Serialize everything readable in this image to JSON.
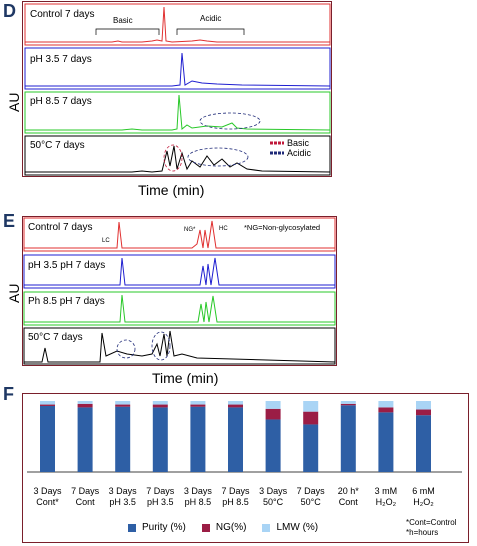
{
  "panels": {
    "d": {
      "letter": "D",
      "ylabel": "AU",
      "xlabel": "Time (min)",
      "traces": [
        {
          "label": "Control 7 days",
          "color": "#e03030"
        },
        {
          "label": "pH 3.5 7 days",
          "color": "#1f1fd0"
        },
        {
          "label": "pH 8.5 7 days",
          "color": "#28c828"
        },
        {
          "label": "50°C 7 days",
          "color": "#000000"
        }
      ],
      "annotations": {
        "basic": "Basic",
        "acidic": "Acidic"
      },
      "legend": [
        {
          "label": "Basic",
          "color": "#c0183a"
        },
        {
          "label": "Acidic",
          "color": "#1f2a78"
        }
      ]
    },
    "e": {
      "letter": "E",
      "ylabel": "AU",
      "xlabel": "Time (min)",
      "note": "*NG=Non-glycosylated",
      "peak_labels": {
        "lc": "LC",
        "ng": "NG*",
        "hc": "HC"
      },
      "traces": [
        {
          "label": "Control 7 days",
          "color": "#e03030"
        },
        {
          "label": "pH 3.5 pH 7 days",
          "color": "#1f1fd0"
        },
        {
          "label": "Ph 8.5 pH 7 days",
          "color": "#28c828"
        },
        {
          "label": "50°C 7 days",
          "color": "#000000"
        }
      ]
    },
    "f": {
      "letter": "F",
      "footnote1": "*Cont=Control",
      "footnote2": "*h=hours"
    }
  },
  "chart_data": [
    {
      "type": "line",
      "panel": "D",
      "xlabel": "Time (min)",
      "ylabel": "AU",
      "series": [
        {
          "name": "Control 7 days"
        },
        {
          "name": "pH 3.5 7 days"
        },
        {
          "name": "pH 8.5 7 days"
        },
        {
          "name": "50°C 7 days"
        }
      ]
    },
    {
      "type": "line",
      "panel": "E",
      "xlabel": "Time (min)",
      "ylabel": "AU",
      "series": [
        {
          "name": "Control 7 days"
        },
        {
          "name": "pH 3.5 pH 7 days"
        },
        {
          "name": "Ph 8.5 pH 7 days"
        },
        {
          "name": "50°C 7 days"
        }
      ]
    },
    {
      "type": "bar",
      "stacked": true,
      "panel": "F",
      "categories": [
        [
          "3 Days",
          "Cont*"
        ],
        [
          "7 Days",
          "Cont"
        ],
        [
          "3 Days",
          "pH 3.5"
        ],
        [
          "7 Days",
          "pH 3.5"
        ],
        [
          "3 Days",
          "pH 8.5"
        ],
        [
          "7 Days",
          "pH 8.5"
        ],
        [
          "3 Days",
          "50°C"
        ],
        [
          "7 Days",
          "50°C"
        ],
        [
          "20 h*",
          "Cont"
        ],
        [
          "3 mM",
          "H₂O₂"
        ],
        [
          "6 mM",
          "H₂O₂"
        ]
      ],
      "series": [
        {
          "name": "Purity (%)",
          "color": "#2e5fa5",
          "values": [
            93,
            91,
            92,
            91,
            92,
            91,
            74,
            67,
            94,
            84,
            80
          ]
        },
        {
          "name": "NG(%)",
          "color": "#9b1d45",
          "values": [
            2,
            5,
            3,
            4,
            3,
            4,
            15,
            18,
            2,
            7,
            8
          ]
        },
        {
          "name": "LMW (%)",
          "color": "#a9d4f5",
          "values": [
            5,
            4,
            5,
            5,
            5,
            5,
            11,
            15,
            4,
            9,
            12
          ]
        }
      ],
      "ylim": [
        0,
        100
      ],
      "legend_position": "bottom"
    }
  ]
}
